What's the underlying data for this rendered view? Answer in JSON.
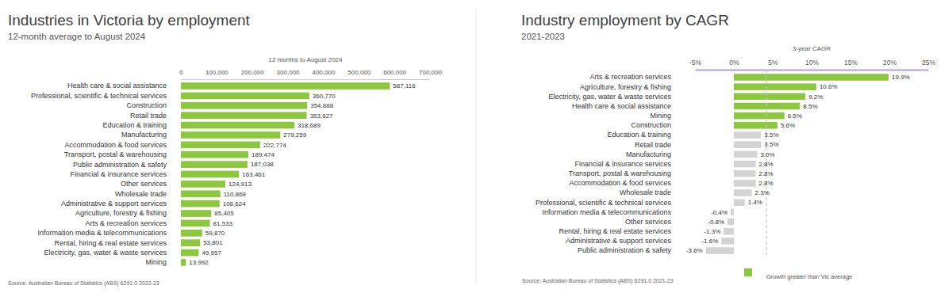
{
  "chart_data": [
    {
      "type": "bar",
      "orientation": "horizontal",
      "title": "Industries in Victoria by employment",
      "subtitle": "12-month average to August 2024",
      "x_label": "12 months to August 2024",
      "source": "Source: Australian Bureau of Statistics (ABS) 6291.0 2022-23",
      "categories": [
        "Health care & social assistance",
        "Professional, scientific & technical services",
        "Construction",
        "Retail trade",
        "Education & training",
        "Manufacturing",
        "Accommodation & food services",
        "Transport, postal & warehousing",
        "Public administration & safety",
        "Financial & insurance services",
        "Other services",
        "Wholesale trade",
        "Administrative & support services",
        "Agriculture, forestry & fishing",
        "Arts & recreation services",
        "Information media & telecommunications",
        "Rental, hiring & real estate services",
        "Electricity, gas, water & waste services",
        "Mining"
      ],
      "values": [
        587116,
        360770,
        354888,
        353627,
        318689,
        279259,
        222774,
        189474,
        187038,
        163461,
        124913,
        110869,
        108624,
        85405,
        81533,
        59870,
        53801,
        49957,
        13992
      ],
      "value_labels": [
        "587,116",
        "360,770",
        "354,888",
        "353,627",
        "318,689",
        "279,259",
        "222,774",
        "189,474",
        "187,038",
        "163,461",
        "124,913",
        "110,869",
        "108,624",
        "85,405",
        "81,533",
        "59,870",
        "53,801",
        "49,957",
        "13,992"
      ],
      "color": "#8dc63f",
      "xlim": [
        0,
        700000
      ],
      "xticks": [
        0,
        {
          "value": 100000,
          "label": "100,000"
        },
        {
          "value": 200000,
          "label": "200,000"
        },
        {
          "value": 300000,
          "label": "300,000"
        },
        {
          "value": 400000,
          "label": "400,000"
        },
        {
          "value": 500000,
          "label": "500,000"
        },
        {
          "value": 600000,
          "label": "600,000"
        },
        {
          "value": 700000,
          "label": "700,000"
        }
      ],
      "grid": false,
      "data_labels": true
    },
    {
      "type": "bar",
      "orientation": "horizontal",
      "title": "Industry employment by CAGR",
      "subtitle": "2021-2023",
      "x_label": "3-year CAGR",
      "source": "Source: Australian Bureau of Statistics (ABS) 6291.0 2021-23",
      "categories": [
        "Arts & recreation services",
        "Agriculture, forestry & fishing",
        "Electricity, gas, water & waste services",
        "Health care & social assistance",
        "Mining",
        "Construction",
        "Education & training",
        "Retail trade",
        "Manufacturing",
        "Financial & insurance services",
        "Transport, postal & warehousing",
        "Accommodation & food services",
        "Wholesale trade",
        "Professional, scientific & technical services",
        "Information media & telecommunications",
        "Other services",
        "Rental, hiring & real estate services",
        "Administrative & support services",
        "Public administration & safety"
      ],
      "series": [
        {
          "name": "Growth greater than Vic average",
          "color": "#8dc63f",
          "colors": [
            "#8dc63f",
            "#8dc63f",
            "#8dc63f",
            "#8dc63f",
            "#8dc63f",
            "#8dc63f",
            "#d3d3d3",
            "#d3d3d3",
            "#d3d3d3",
            "#d3d3d3",
            "#d3d3d3",
            "#d3d3d3",
            "#d3d3d3",
            "#d3d3d3",
            "#d3d3d3",
            "#d3d3d3",
            "#d3d3d3",
            "#d3d3d3",
            "#d3d3d3"
          ],
          "values": [
            19.9,
            10.6,
            9.2,
            8.5,
            6.5,
            5.6,
            3.5,
            3.5,
            3.0,
            2.8,
            2.8,
            2.8,
            2.3,
            1.4,
            -0.4,
            -0.8,
            -1.3,
            -1.6,
            -3.6
          ],
          "value_labels": [
            "19.9%",
            "10.6%",
            "9.2%",
            "8.5%",
            "6.5%",
            "5.6%",
            "3.5%",
            "3.5%",
            "3.0%",
            "2.8%",
            "2.8%",
            "2.8%",
            "2.3%",
            "1.4%",
            "-0.4%",
            "-0.8%",
            "-1.3%",
            "-1.6%",
            "-3.6%"
          ]
        }
      ],
      "average_line": 4.2,
      "xlim": [
        -5,
        25
      ],
      "xticks": [
        {
          "value": -5,
          "label": "-5%"
        },
        {
          "value": 0,
          "label": "0%"
        },
        {
          "value": 5,
          "label": "5%"
        },
        {
          "value": 10,
          "label": "10%"
        },
        {
          "value": 15,
          "label": "15%"
        },
        {
          "value": 20,
          "label": "20%"
        },
        {
          "value": 25,
          "label": "25%"
        }
      ],
      "grid": false,
      "legend": "bottom",
      "data_labels": true
    }
  ]
}
